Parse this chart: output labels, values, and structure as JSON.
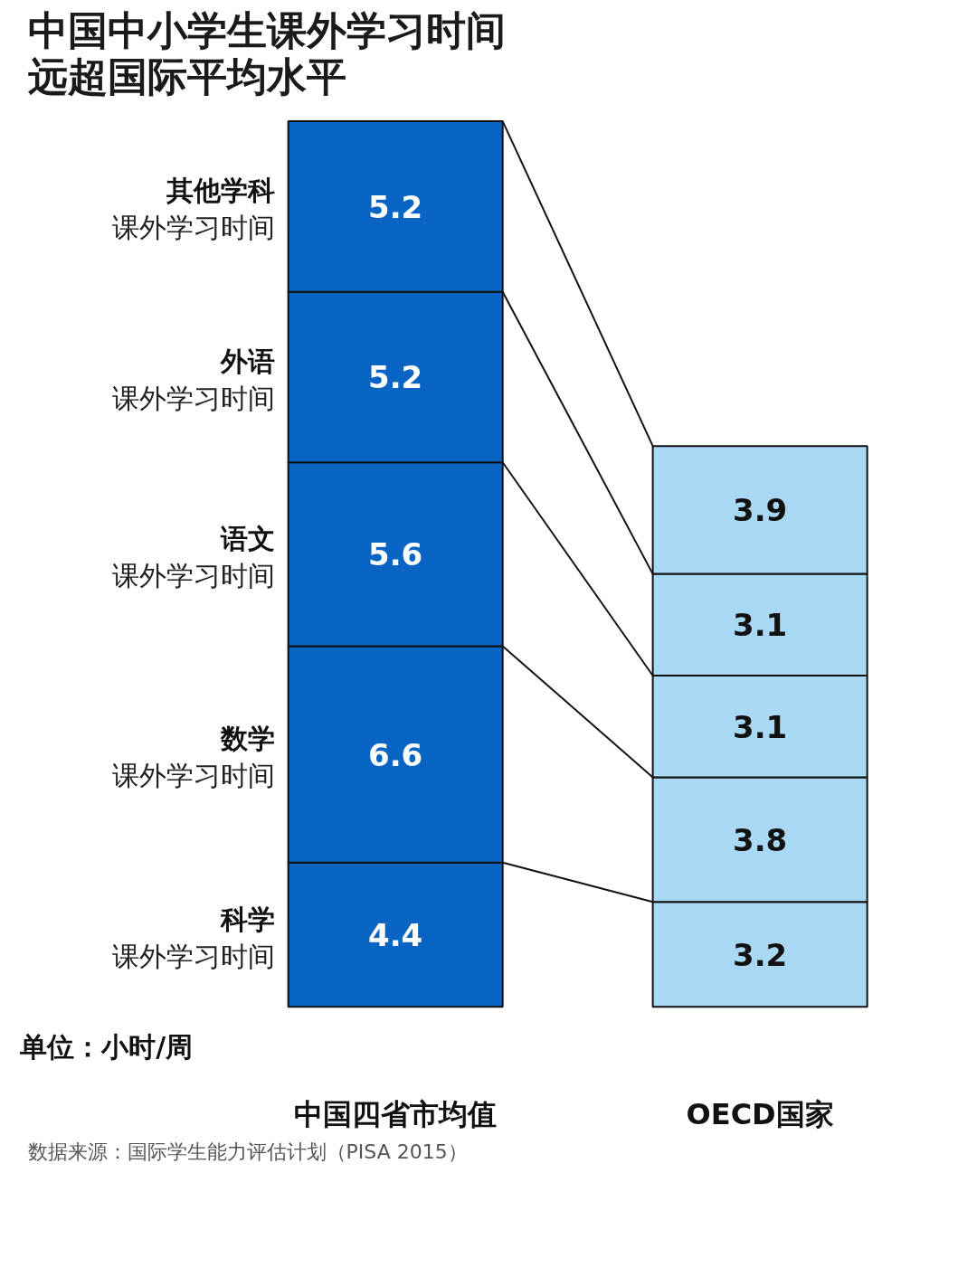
{
  "chart_data": {
    "type": "bar",
    "title": "中国中小学生课外学习时间远超国际平均水平",
    "categories": [
      "中国四省市均值",
      "OECD国家"
    ],
    "stacked": true,
    "data_labels": true,
    "grid": false,
    "series": [
      {
        "name": "科学课外学习时间",
        "colors": [
          "#0a64c4",
          "#a9d8f5"
        ],
        "values": [
          4.4,
          3.2
        ]
      },
      {
        "name": "数学课外学习时间",
        "colors": [
          "#0a64c4",
          "#a9d8f5"
        ],
        "values": [
          6.6,
          3.8
        ]
      },
      {
        "name": "语文课外学习时间",
        "colors": [
          "#0a64c4",
          "#a9d8f5"
        ],
        "values": [
          5.6,
          3.1
        ]
      },
      {
        "name": "外语课外学习时间",
        "colors": [
          "#0a64c4",
          "#a9d8f5"
        ],
        "values": [
          5.2,
          3.1
        ]
      },
      {
        "name": "其他学科课外学习时间",
        "colors": [
          "#0a64c4",
          "#a9d8f5"
        ],
        "values": [
          5.2,
          3.9
        ]
      }
    ],
    "annotations": [
      "单位：小时/周",
      "数据来源：国际学生能力评估计划（PISA 2015）"
    ]
  }
}
